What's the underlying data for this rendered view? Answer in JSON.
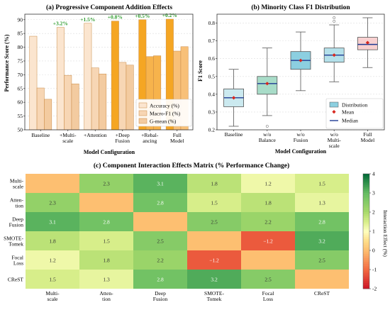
{
  "colors": {
    "accuracy": "#fbe5cf",
    "macro_f1": "#f7d6b4",
    "gmean": "#f3cba0",
    "bar_highlight": "#f5a623",
    "box_fill": "#cbe9ef",
    "box_fill_alt": "#8ccfe0",
    "median": "#1f3a93",
    "mean": "#d7261e",
    "improvement": "#2e9c2e"
  },
  "chart_data": [
    {
      "type": "bar",
      "title": "(a) Progressive Component Addition Effects",
      "xlabel": "Model Configuration",
      "ylabel": "Performance Score (%)",
      "ylim": [
        50,
        92
      ],
      "yticks": [
        "50",
        "55",
        "60",
        "65",
        "70",
        "75",
        "80",
        "85",
        "90"
      ],
      "grid": true,
      "legend_position": "lower-right",
      "categories": [
        [
          "Baseline"
        ],
        [
          "+Multi-",
          "scale"
        ],
        [
          "+Attention"
        ],
        [
          "+Deep",
          "Fusion"
        ],
        [
          "+Rebal-",
          "ancing"
        ],
        [
          "Full",
          "Model"
        ]
      ],
      "series": [
        {
          "name": "Accuracy (%)",
          "values": [
            84.0,
            87.2,
            88.7,
            89.5,
            90.0,
            90.2
          ]
        },
        {
          "name": "Macro-F1 (%)",
          "values": [
            65.2,
            69.8,
            72.5,
            74.5,
            76.6,
            78.6
          ]
        },
        {
          "name": "G-mean (%)",
          "values": [
            61.1,
            66.7,
            70.3,
            73.5,
            76.9,
            80.2
          ]
        }
      ],
      "highlight_categories": [
        3,
        4,
        5
      ],
      "annotations": [
        "",
        "+3.2%",
        "+1.5%",
        "+0.8%",
        "+0.5%",
        "+0.2%"
      ]
    },
    {
      "type": "box",
      "title": "(b) Minority Class F1 Distribution",
      "xlabel": "Model Configuration",
      "ylabel": "F1 Score",
      "ylim": [
        0.2,
        0.85
      ],
      "yticks": [
        "0.2",
        "0.3",
        "0.4",
        "0.5",
        "0.6",
        "0.7",
        "0.8"
      ],
      "grid": true,
      "legend_position": "lower-right",
      "legend": [
        "Distribution",
        "Mean",
        "Median"
      ],
      "categories": [
        [
          "Baseline"
        ],
        [
          "w/o",
          "Balance"
        ],
        [
          "w/o",
          "Fusion"
        ],
        [
          "w/o",
          "Multi-",
          "scale"
        ],
        [
          "Full",
          "Model"
        ]
      ],
      "boxes": [
        {
          "whisker_low": 0.22,
          "q1": 0.33,
          "median": 0.38,
          "q3": 0.43,
          "whisker_high": 0.54,
          "mean": 0.38,
          "outliers": []
        },
        {
          "whisker_low": 0.28,
          "q1": 0.4,
          "median": 0.46,
          "q3": 0.5,
          "whisker_high": 0.66,
          "mean": 0.46,
          "outliers": [
            0.22
          ]
        },
        {
          "whisker_low": 0.42,
          "q1": 0.54,
          "median": 0.59,
          "q3": 0.64,
          "whisker_high": 0.75,
          "mean": 0.59,
          "outliers": []
        },
        {
          "whisker_low": 0.47,
          "q1": 0.58,
          "median": 0.62,
          "q3": 0.66,
          "whisker_high": 0.79,
          "mean": 0.62,
          "outliers": [
            0.83,
            0.81
          ]
        },
        {
          "whisker_low": 0.55,
          "q1": 0.65,
          "median": 0.68,
          "q3": 0.72,
          "whisker_high": 0.83,
          "mean": 0.69,
          "outliers": []
        }
      ]
    },
    {
      "type": "heatmap",
      "title": "(c) Component Interaction Effects Matrix (% Performance Change)",
      "colorbar_label": "Interaction Effect (%)",
      "zlim": [
        -2,
        4
      ],
      "colorbar_ticks": [
        "-2",
        "-1",
        "0",
        "1",
        "2",
        "3",
        "4"
      ],
      "row_labels": [
        [
          "Multi-",
          "scale"
        ],
        [
          "Atten-",
          "tion"
        ],
        [
          "Deep",
          "Fusion"
        ],
        [
          "SMOTE-",
          "Tomek"
        ],
        [
          "Focal",
          "Loss"
        ],
        [
          "CReST"
        ]
      ],
      "col_labels": [
        [
          "Multi-",
          "scale"
        ],
        [
          "Atten-",
          "tion"
        ],
        [
          "Deep",
          "Fusion"
        ],
        [
          "SMOTE-",
          "Tomek"
        ],
        [
          "Focal",
          "Loss"
        ],
        [
          "CReST"
        ]
      ],
      "values": [
        [
          0.0,
          2.3,
          3.1,
          1.8,
          1.2,
          1.5
        ],
        [
          2.3,
          0.0,
          2.8,
          1.5,
          1.8,
          1.3
        ],
        [
          3.1,
          2.8,
          0.0,
          2.5,
          2.2,
          2.8
        ],
        [
          1.8,
          1.5,
          2.5,
          0.0,
          -1.2,
          3.2
        ],
        [
          1.2,
          1.8,
          2.2,
          -1.2,
          0.0,
          2.5
        ],
        [
          1.5,
          1.3,
          2.8,
          3.2,
          2.5,
          0.0
        ]
      ],
      "cell_labels": [
        [
          "",
          "2.3",
          "3.1",
          "1.8",
          "1.2",
          "1.5"
        ],
        [
          "2.3",
          "",
          "2.8",
          "1.5",
          "1.8",
          "1.3"
        ],
        [
          "3.1",
          "2.8",
          "",
          "2.5",
          "2.2",
          "2.8"
        ],
        [
          "1.8",
          "1.5",
          "2.5",
          "",
          "−1.2",
          "3.2"
        ],
        [
          "1.2",
          "1.8",
          "2.2",
          "−1.2",
          "",
          "2.5"
        ],
        [
          "1.5",
          "1.3",
          "2.8",
          "3.2",
          "2.5",
          ""
        ]
      ]
    }
  ]
}
